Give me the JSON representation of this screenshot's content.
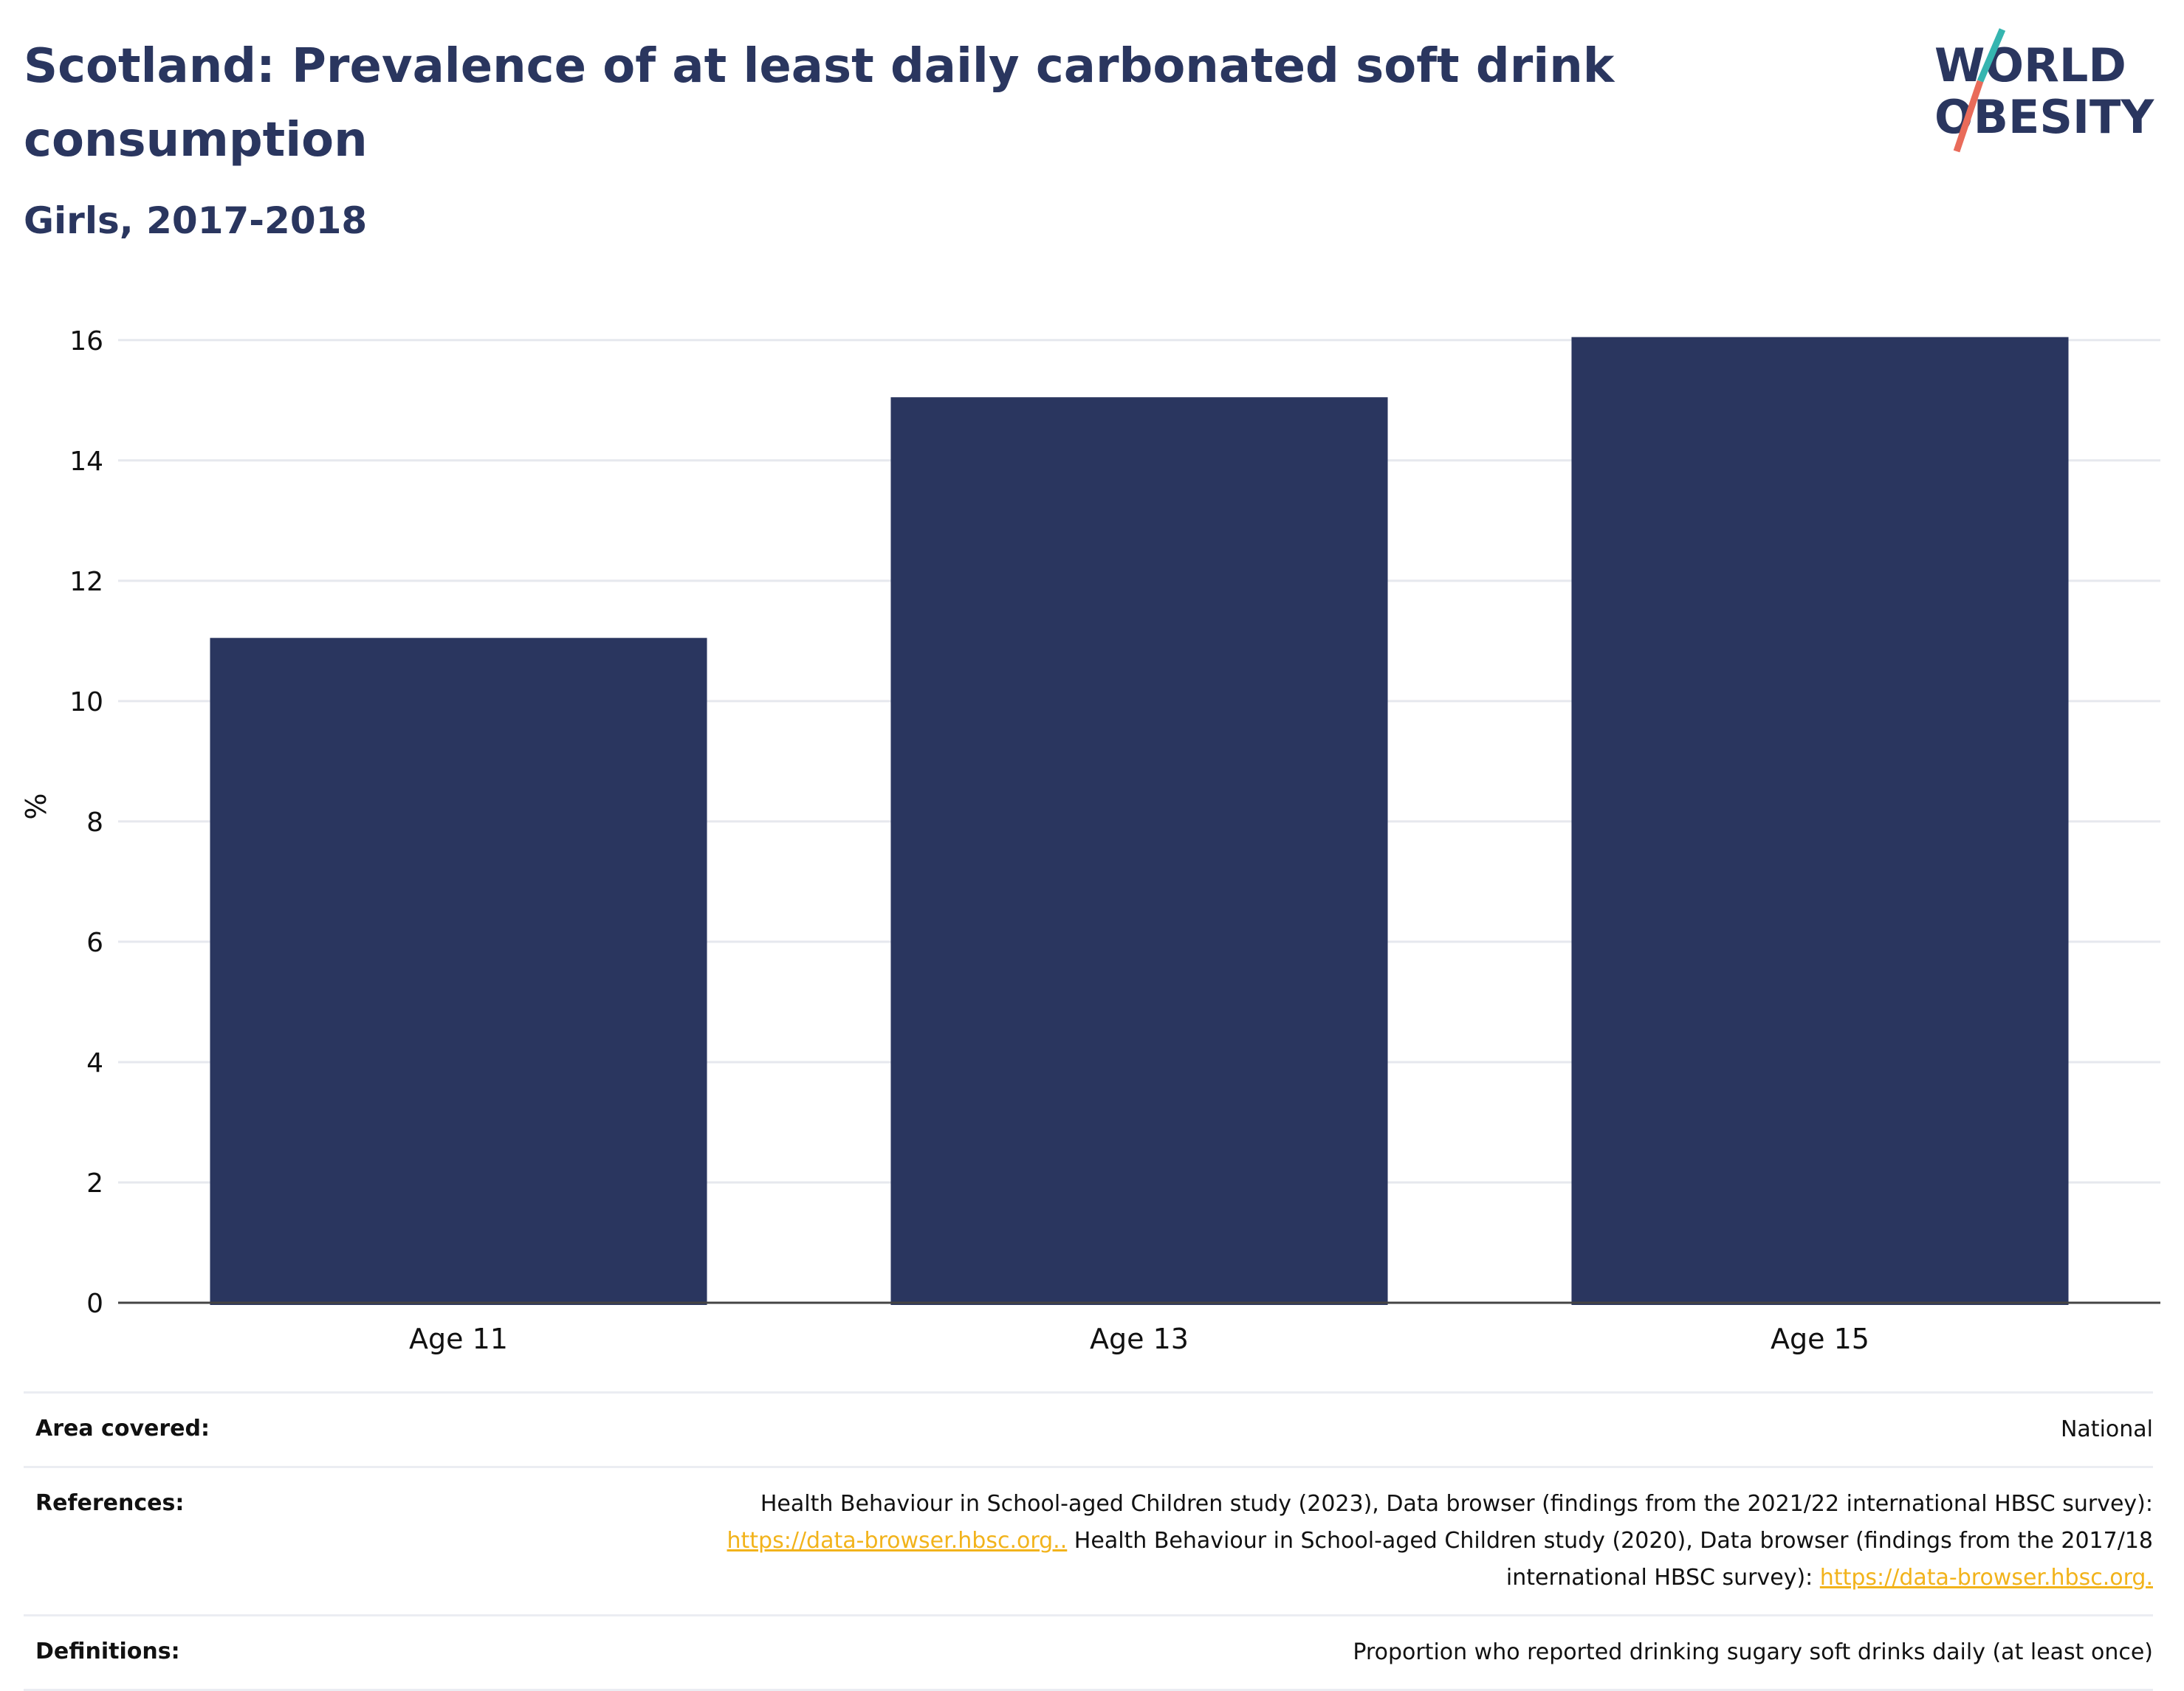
{
  "header": {
    "title": "Scotland: Prevalence of at least daily carbonated soft drink consumption",
    "subtitle": "Girls, 2017-2018"
  },
  "logo": {
    "line1": "WORLD",
    "line2": "OBESITY",
    "colors": {
      "navy": "#2a365f",
      "teal": "#35b5b0",
      "coral": "#e96b5a"
    }
  },
  "chart_data": {
    "type": "bar",
    "categories": [
      "Age 11",
      "Age 13",
      "Age 15"
    ],
    "values": [
      11.05,
      15.05,
      16.05
    ],
    "ylabel": "%",
    "xlabel": "",
    "ylim": [
      0,
      16.5
    ],
    "yticks": [
      0,
      2,
      4,
      6,
      8,
      10,
      12,
      14,
      16
    ],
    "grid": true,
    "bar_color": "#2a365f"
  },
  "info": {
    "area_label": "Area covered:",
    "area_value": "National",
    "references_label": "References:",
    "ref_text1": "Health Behaviour in School-aged Children study (2023), Data browser (findings from the 2021/22 international HBSC survey):",
    "ref_link1": "https://data-browser.hbsc.org..",
    "ref_text2": " Health Behaviour in School-aged Children study (2020), Data browser (findings from the 2017/18",
    "ref_text3": "international HBSC survey): ",
    "ref_link2": "https://data-browser.hbsc.org.",
    "definitions_label": "Definitions:",
    "definitions_value": "Proportion who reported drinking sugary soft drinks daily (at least once)"
  }
}
